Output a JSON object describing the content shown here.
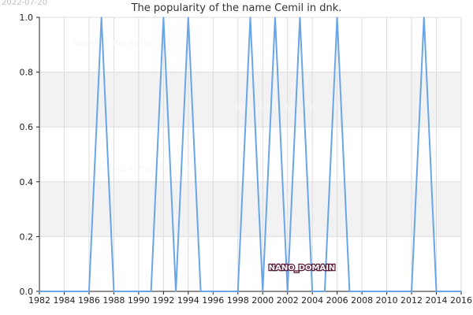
{
  "header": {
    "date_stamp": "2022-07-20",
    "title": "The popularity of the name Cemil in dnk."
  },
  "overlay": {
    "domain_label": "NANO_DOMAIN",
    "watermark": "Names of the World 2022"
  },
  "colors": {
    "line": "#6aa5e8",
    "band": "#f2f2f2",
    "grid": "#dddddd",
    "axis": "#222222",
    "domain_outline": "#5a1a3a"
  },
  "chart_data": {
    "type": "line",
    "title": "The popularity of the name Cemil in dnk.",
    "xlabel": "",
    "ylabel": "",
    "xlim": [
      1982,
      2016
    ],
    "ylim": [
      0,
      1
    ],
    "x_ticks": [
      1982,
      1984,
      1986,
      1988,
      1990,
      1992,
      1994,
      1996,
      1998,
      2000,
      2002,
      2004,
      2006,
      2008,
      2010,
      2012,
      2014,
      2016
    ],
    "y_ticks": [
      "0.0",
      "0.2",
      "0.4",
      "0.6",
      "0.8",
      "1.0"
    ],
    "grid": true,
    "series": [
      {
        "x": [
          1982,
          1983,
          1984,
          1985,
          1986,
          1987,
          1988,
          1989,
          1990,
          1991,
          1992,
          1993,
          1994,
          1995,
          1996,
          1997,
          1998,
          1999,
          2000,
          2001,
          2002,
          2003,
          2004,
          2005,
          2006,
          2007,
          2008,
          2009,
          2010,
          2011,
          2012,
          2013,
          2014,
          2015,
          2016
        ],
        "values": [
          0,
          0,
          0,
          0,
          0,
          1,
          0,
          0,
          0,
          0,
          1,
          0,
          1,
          0,
          0,
          0,
          0,
          1,
          0,
          1,
          0,
          1,
          0,
          0,
          1,
          0,
          0,
          0,
          0,
          0,
          0,
          1,
          0,
          0,
          0
        ]
      }
    ]
  }
}
